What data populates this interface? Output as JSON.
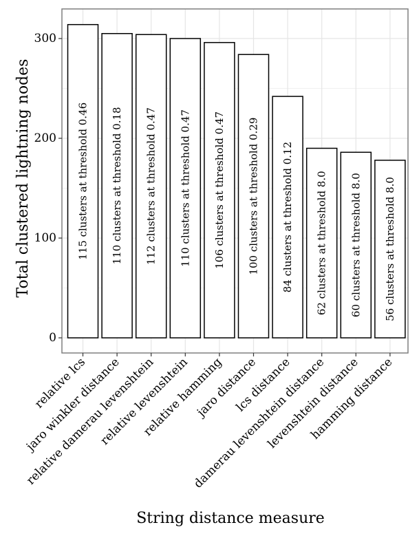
{
  "chart_data": {
    "type": "bar",
    "title": "",
    "xlabel": "String distance measure",
    "ylabel": "Total clustered lightning nodes",
    "ylim": [
      0,
      322
    ],
    "yticks": [
      0,
      100,
      200,
      300
    ],
    "grid": true,
    "legend": "none",
    "categories": [
      "relative lcs",
      "jaro winkler distance",
      "relative damerau levenshtein",
      "relative levenshtein",
      "relative hamming",
      "jaro distance",
      "lcs distance",
      "damerau levenshtein distance",
      "levenshtein distance",
      "hamming distance"
    ],
    "values": [
      314,
      305,
      304,
      300,
      296,
      284,
      242,
      190,
      186,
      178
    ],
    "bar_labels": [
      "115 clusters at threshold 0.46",
      "110 clusters at threshold 0.18",
      "112 clusters at threshold 0.47",
      "110 clusters at threshold 0.47",
      "106 clusters at threshold 0.47",
      "100 clusters at threshold 0.29",
      "84 clusters at threshold 0.12",
      "62 clusters at threshold 8.0",
      "60 clusters at threshold 8.0",
      "56 clusters at threshold 8.0"
    ],
    "colors": {
      "bar_fill": "#ffffff",
      "bar_stroke": "#000000",
      "grid": "#e5e5e5",
      "panel_border": "#7f7f7f"
    }
  }
}
